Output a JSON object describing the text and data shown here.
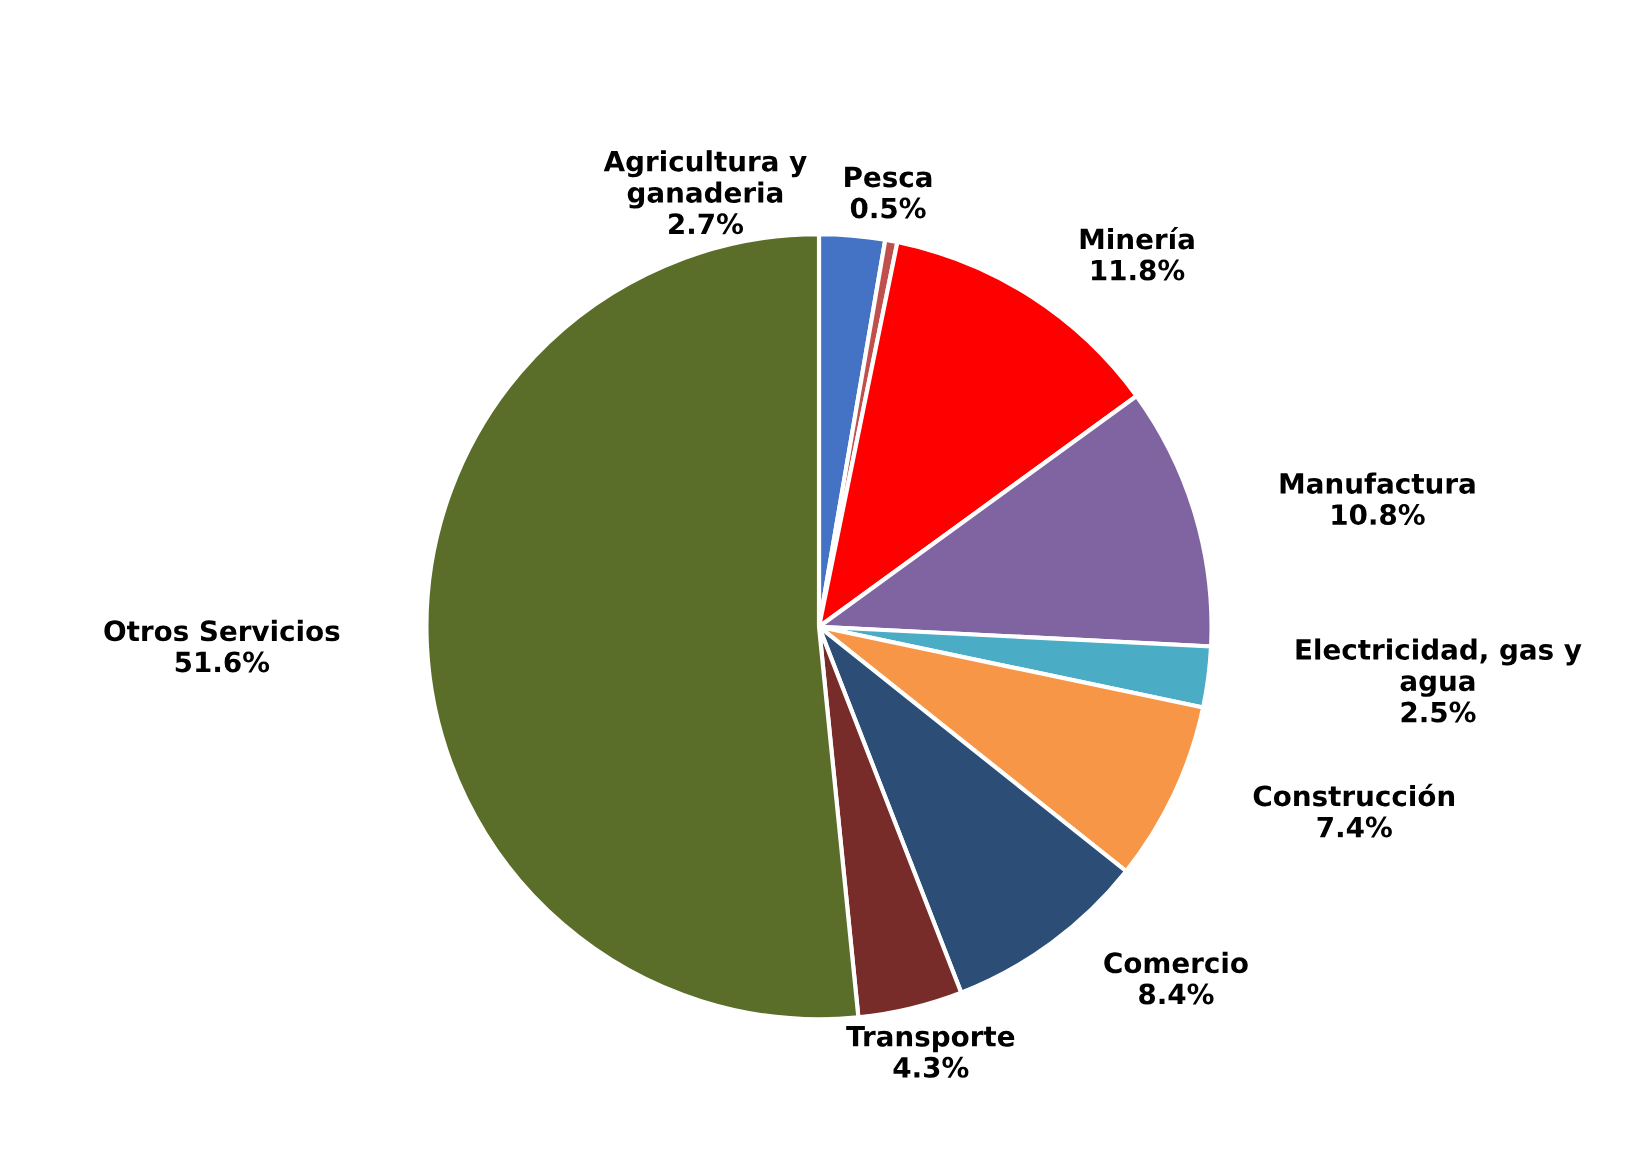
{
  "chart_data": {
    "type": "pie",
    "categories": [
      "Agricultura y ganaderia",
      "Pesca",
      "Minería",
      "Manufactura",
      "Electricidad, gas y agua",
      "Construcción",
      "Comercio",
      "Transporte",
      "Otros Servicios"
    ],
    "values": [
      2.7,
      0.5,
      11.8,
      10.8,
      2.5,
      7.4,
      8.4,
      4.3,
      51.6
    ],
    "colors": [
      "#4472c4",
      "#c0504d",
      "#ff0000",
      "#8064a2",
      "#4bacc6",
      "#f79646",
      "#2c4d75",
      "#772c2a",
      "#5a6e2a"
    ],
    "value_labels": [
      "2.7%",
      "0.5%",
      "11.8%",
      "10.8%",
      "2.5%",
      "7.4%",
      "8.4%",
      "4.3%",
      "51.6%"
    ]
  }
}
